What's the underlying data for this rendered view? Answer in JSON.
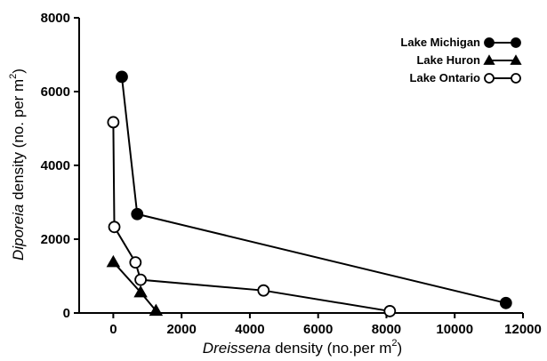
{
  "chart_data": {
    "type": "line",
    "title": "",
    "xlabel": {
      "italic": "Dreissena",
      "rest": " density (no.per m",
      "sup": "2",
      "close": ")"
    },
    "ylabel": {
      "italic": "Diporeia",
      "rest": " density (no. per m",
      "sup": "2",
      "close": ")"
    },
    "xlim": [
      -1000,
      12000
    ],
    "ylim": [
      0,
      8000
    ],
    "xticks": [
      0,
      2000,
      4000,
      6000,
      8000,
      10000,
      12000
    ],
    "yticks": [
      0,
      2000,
      4000,
      6000,
      8000
    ],
    "grid": false,
    "legend_position": "top-right",
    "series": [
      {
        "name": "Lake Michigan",
        "marker": "filled-circle",
        "x": [
          250,
          700,
          11500
        ],
        "y": [
          6400,
          2680,
          270
        ]
      },
      {
        "name": "Lake Huron",
        "marker": "filled-triangle",
        "x": [
          0,
          800,
          1250
        ],
        "y": [
          1380,
          560,
          60
        ]
      },
      {
        "name": "Lake Ontario",
        "marker": "open-circle",
        "x": [
          0,
          30,
          650,
          800,
          4400,
          8100
        ],
        "y": [
          5170,
          2330,
          1370,
          900,
          610,
          50
        ]
      }
    ]
  }
}
